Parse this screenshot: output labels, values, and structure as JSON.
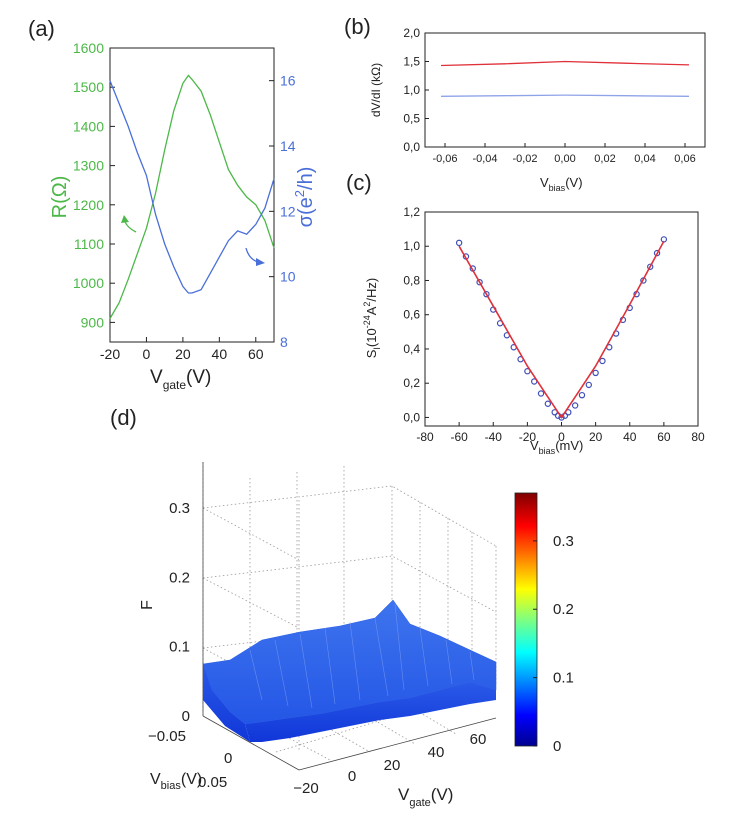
{
  "chart_data": [
    {
      "panel": "(a)",
      "type": "line",
      "xlabel": "V",
      "xlabel_sub": "gate",
      "xlabel_unit": "(V)",
      "xlim": [
        -20,
        70
      ],
      "xticks": [
        "-20",
        "0",
        "20",
        "40",
        "60"
      ],
      "ylabel_left": "R(Ω)",
      "ylim_left": [
        850,
        1600
      ],
      "yticks_left": [
        "900",
        "1000",
        "1100",
        "1200",
        "1300",
        "1400",
        "1500",
        "1600"
      ],
      "ylabel_right": "σ(e²/h)",
      "ylabel_right_base": "σ(e",
      "ylabel_right_sup": "2",
      "ylabel_right_tail": "/h)",
      "ylim_right": [
        8,
        17
      ],
      "yticks_right": [
        "8",
        "10",
        "12",
        "14",
        "16"
      ],
      "colors": {
        "R": "#4cb848",
        "sigma": "#4a6fd8"
      },
      "series": [
        {
          "name": "R",
          "axis": "left",
          "x": [
            -20,
            -15,
            -10,
            -5,
            0,
            5,
            10,
            15,
            20,
            23,
            25,
            30,
            35,
            40,
            45,
            50,
            55,
            60,
            65,
            70
          ],
          "values": [
            910,
            950,
            1010,
            1075,
            1140,
            1230,
            1340,
            1440,
            1510,
            1530,
            1520,
            1490,
            1430,
            1360,
            1290,
            1250,
            1220,
            1200,
            1160,
            1090
          ]
        },
        {
          "name": "sigma",
          "axis": "right",
          "x": [
            -20,
            -15,
            -10,
            -5,
            0,
            5,
            10,
            15,
            20,
            23,
            25,
            30,
            35,
            40,
            45,
            50,
            55,
            60,
            65,
            70
          ],
          "values": [
            16.0,
            15.3,
            14.6,
            13.8,
            13.1,
            11.9,
            11.0,
            10.3,
            9.7,
            9.5,
            9.5,
            9.6,
            10.1,
            10.6,
            11.1,
            11.4,
            11.3,
            11.6,
            12.1,
            13.0
          ]
        }
      ]
    },
    {
      "panel": "(b)",
      "type": "line",
      "xlabel": "V",
      "xlabel_sub": "bias",
      "xlabel_unit": "(V)",
      "xlim": [
        -0.07,
        0.07
      ],
      "xticks": [
        "-0,06",
        "-0,04",
        "-0,02",
        "0,00",
        "0,02",
        "0,04",
        "0,06"
      ],
      "ylabel": "dV/dI (kΩ)",
      "ylim": [
        0,
        2
      ],
      "yticks": [
        "0,0",
        "0,5",
        "1,0",
        "1,5",
        "2,0"
      ],
      "series": [
        {
          "name": "upper",
          "color": "#e0303a",
          "x": [
            -0.062,
            -0.03,
            0.0,
            0.03,
            0.062
          ],
          "values": [
            1.43,
            1.46,
            1.5,
            1.47,
            1.44
          ]
        },
        {
          "name": "lower",
          "color": "#8fa3e8",
          "x": [
            -0.062,
            -0.03,
            0.0,
            0.03,
            0.062
          ],
          "values": [
            0.89,
            0.9,
            0.91,
            0.9,
            0.89
          ]
        }
      ]
    },
    {
      "panel": "(c)",
      "type": "scatter",
      "xlabel": "V",
      "xlabel_sub": "bias",
      "xlabel_unit": "(mV)",
      "xlim": [
        -80,
        80
      ],
      "xticks": [
        "-80",
        "-60",
        "-40",
        "-20",
        "0",
        "20",
        "40",
        "60",
        "80"
      ],
      "ylabel": "S",
      "ylabel_sub": "I",
      "ylabel_mid": "(10",
      "ylabel_sup1": "-24",
      "ylabel_mid2": "A",
      "ylabel_sup2": "2",
      "ylabel_tail": "/Hz)",
      "ylim": [
        -0.05,
        1.2
      ],
      "yticks": [
        "0,0",
        "0,2",
        "0,4",
        "0,6",
        "0,8",
        "1,0",
        "1,2"
      ],
      "points_color": "#3d4fb8",
      "fit_color": "#e0303a",
      "points": {
        "x": [
          -60,
          -56,
          -52,
          -48,
          -44,
          -40,
          -36,
          -32,
          -28,
          -24,
          -20,
          -16,
          -12,
          -8,
          -4,
          -2,
          0,
          2,
          4,
          8,
          12,
          16,
          20,
          24,
          28,
          32,
          36,
          40,
          44,
          48,
          52,
          56,
          60
        ],
        "values": [
          1.02,
          0.94,
          0.87,
          0.79,
          0.72,
          0.63,
          0.55,
          0.48,
          0.41,
          0.34,
          0.27,
          0.21,
          0.14,
          0.08,
          0.03,
          0.01,
          0.0,
          0.01,
          0.03,
          0.07,
          0.13,
          0.19,
          0.26,
          0.33,
          0.41,
          0.49,
          0.57,
          0.64,
          0.72,
          0.8,
          0.88,
          0.96,
          1.04
        ]
      },
      "fit": {
        "x": [
          -60,
          -40,
          -20,
          -10,
          0,
          10,
          20,
          40,
          60
        ],
        "values": [
          1.0,
          0.65,
          0.3,
          0.15,
          0.0,
          0.15,
          0.3,
          0.66,
          1.03
        ]
      }
    },
    {
      "panel": "(d)",
      "type": "surface3d",
      "zlabel": "F",
      "zlim": [
        0,
        0.37
      ],
      "zticks": [
        "0",
        "0.1",
        "0.2",
        "0.3"
      ],
      "xlabel": "V",
      "xlabel_sub": "gate",
      "xlabel_unit": "(V)",
      "xticks": [
        "−20",
        "0",
        "20",
        "40",
        "60"
      ],
      "ylabel": "V",
      "ylabel_sub": "bias",
      "ylabel_unit": "(V)",
      "yticks": [
        "−0.05",
        "0",
        "0.05"
      ],
      "approx_value": 0.09,
      "colorbar": {
        "min": 0,
        "max": 0.37,
        "ticks": [
          "0",
          "0.1",
          "0.2",
          "0.3"
        ],
        "colormap": "jet"
      }
    }
  ],
  "panels": {
    "a": "(a)",
    "b": "(b)",
    "c": "(c)",
    "d": "(d)"
  }
}
